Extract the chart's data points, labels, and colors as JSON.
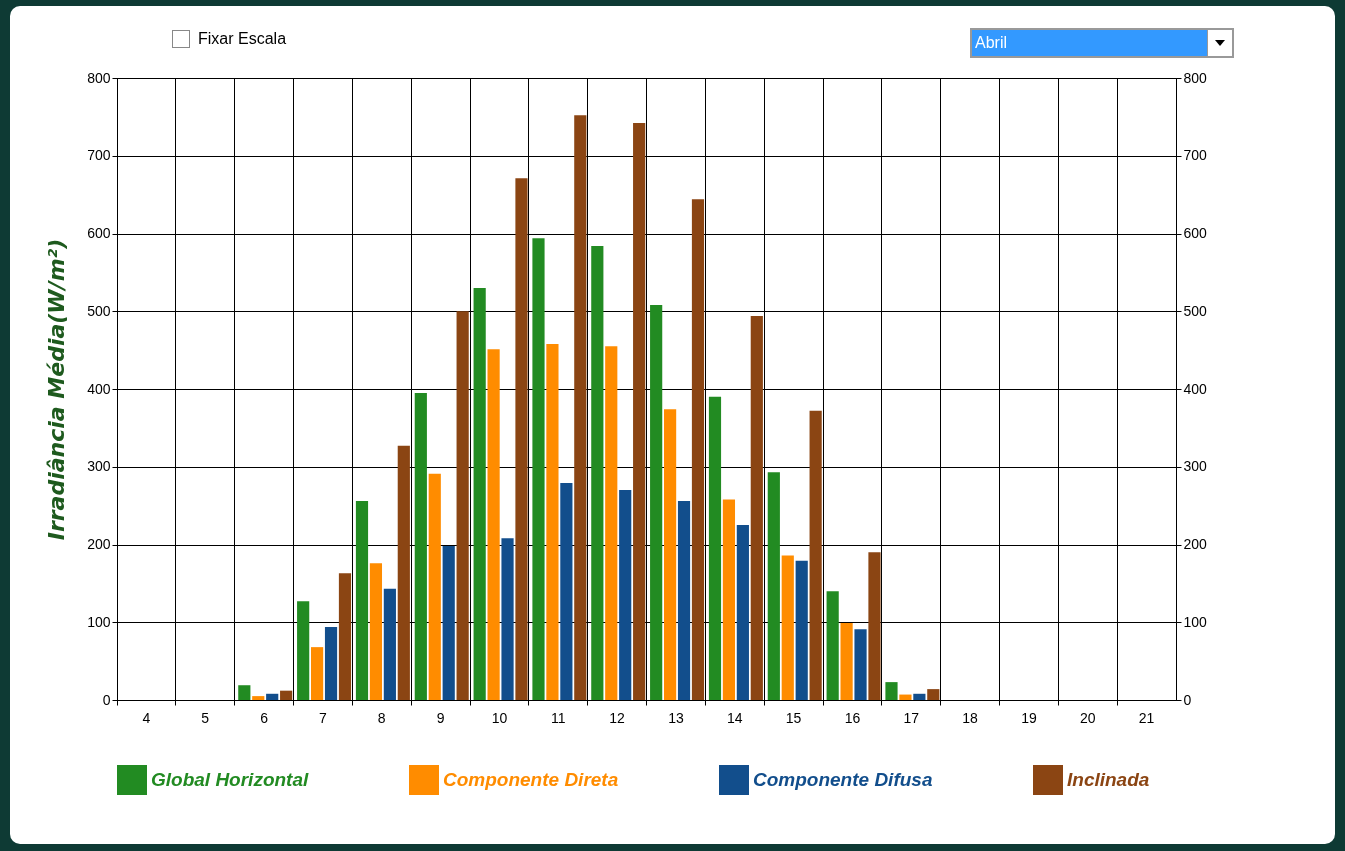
{
  "chart_data": {
    "type": "bar",
    "ylabel": "Irradiância Média(W/m²)",
    "categories": [
      "4",
      "5",
      "6",
      "7",
      "8",
      "9",
      "10",
      "11",
      "12",
      "13",
      "14",
      "15",
      "16",
      "17",
      "18",
      "19",
      "20",
      "21"
    ],
    "series": [
      {
        "name": "Global Horizontal",
        "color": "#228b22",
        "values": [
          0,
          0,
          19,
          127,
          256,
          395,
          530,
          594,
          584,
          508,
          390,
          293,
          140,
          23,
          0,
          0,
          0,
          0
        ]
      },
      {
        "name": "Componente Direta",
        "color": "#ff8c00",
        "values": [
          0,
          0,
          5,
          68,
          176,
          291,
          451,
          458,
          455,
          374,
          258,
          186,
          99,
          7,
          0,
          0,
          0,
          0
        ]
      },
      {
        "name": "Componente Difusa",
        "color": "#124e8c",
        "values": [
          0,
          0,
          8,
          94,
          143,
          198,
          208,
          279,
          270,
          256,
          225,
          179,
          91,
          8,
          0,
          0,
          0,
          0
        ]
      },
      {
        "name": "Inclinada",
        "color": "#8b4513",
        "values": [
          0,
          0,
          12,
          163,
          327,
          500,
          671,
          752,
          742,
          644,
          494,
          372,
          190,
          14,
          0,
          0,
          0,
          0
        ]
      }
    ],
    "ylim": [
      0,
      800
    ],
    "yticks": [
      0,
      100,
      200,
      300,
      400,
      500,
      600,
      700,
      800
    ],
    "y2lim": [
      0,
      800
    ],
    "y2ticks": [
      0,
      100,
      200,
      300,
      400,
      500,
      600,
      700,
      800
    ],
    "grid": true,
    "legend": "bottom",
    "annotations": [
      "Fixar Escala",
      "Abril"
    ]
  }
}
